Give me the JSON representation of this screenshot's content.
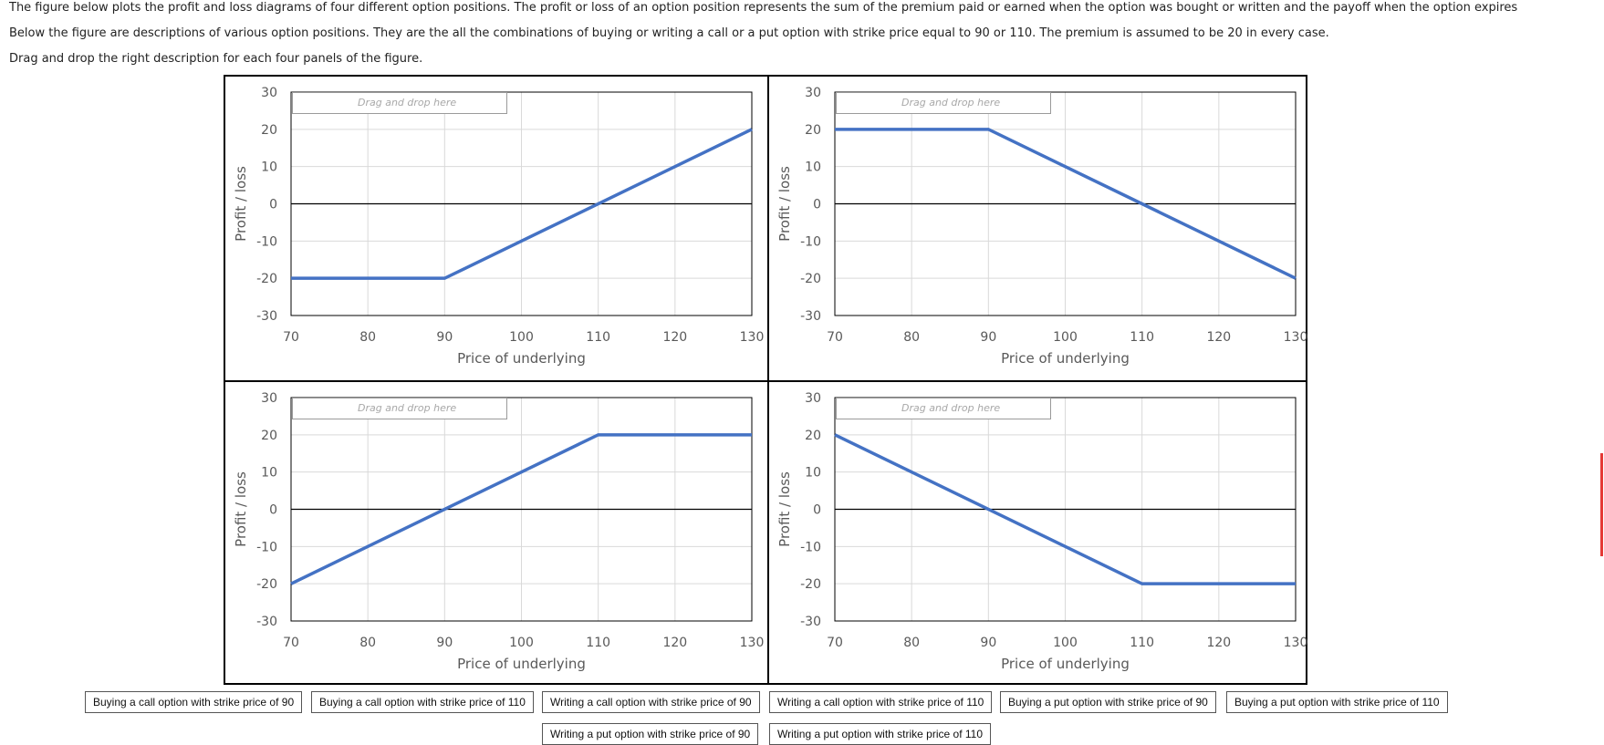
{
  "instructions": {
    "line1": "The figure below plots the profit and loss diagrams of four different option positions. The profit or loss of an option position represents the sum of the premium paid or earned when the option was bought or written and the payoff when the option expires",
    "line2": "Below the figure are descriptions of various option positions. They are the all the combinations of buying or writing a call or a put option with strike price equal to 90 or 110. The premium is assumed to be 20 in every case.",
    "line3": "Drag and drop the right description for each four panels of the figure."
  },
  "dropzone_placeholder": "Drag and drop here",
  "chart_data": [
    {
      "type": "line",
      "panel": "top-left",
      "x": [
        70,
        90,
        130
      ],
      "y": [
        -20,
        -20,
        20
      ],
      "xlabel": "Price of underlying",
      "ylabel": "Profit / loss",
      "xlim": [
        70,
        130
      ],
      "ylim": [
        -30,
        30
      ],
      "xticks": [
        "70",
        "80",
        "90",
        "100",
        "110",
        "120",
        "130"
      ],
      "yticks": [
        "30",
        "20",
        "10",
        "0",
        "-10",
        "-20",
        "-30"
      ],
      "series_color": "#4472C4"
    },
    {
      "type": "line",
      "panel": "top-right",
      "x": [
        70,
        90,
        130
      ],
      "y": [
        20,
        20,
        -20
      ],
      "xlabel": "Price of underlying",
      "ylabel": "Profit / loss",
      "xlim": [
        70,
        130
      ],
      "ylim": [
        -30,
        30
      ],
      "xticks": [
        "70",
        "80",
        "90",
        "100",
        "110",
        "120",
        "130"
      ],
      "yticks": [
        "30",
        "20",
        "10",
        "0",
        "-10",
        "-20",
        "-30"
      ],
      "series_color": "#4472C4"
    },
    {
      "type": "line",
      "panel": "bottom-left",
      "x": [
        70,
        110,
        130
      ],
      "y": [
        -20,
        20,
        20
      ],
      "xlabel": "Price of underlying",
      "ylabel": "Profit / loss",
      "xlim": [
        70,
        130
      ],
      "ylim": [
        -30,
        30
      ],
      "xticks": [
        "70",
        "80",
        "90",
        "100",
        "110",
        "120",
        "130"
      ],
      "yticks": [
        "30",
        "20",
        "10",
        "0",
        "-10",
        "-20",
        "-30"
      ],
      "series_color": "#4472C4"
    },
    {
      "type": "line",
      "panel": "bottom-right",
      "x": [
        70,
        110,
        130
      ],
      "y": [
        20,
        -20,
        -20
      ],
      "xlabel": "Price of underlying",
      "ylabel": "Profit / loss",
      "xlim": [
        70,
        130
      ],
      "ylim": [
        -30,
        30
      ],
      "xticks": [
        "70",
        "80",
        "90",
        "100",
        "110",
        "120",
        "130"
      ],
      "yticks": [
        "30",
        "20",
        "10",
        "0",
        "-10",
        "-20",
        "-30"
      ],
      "series_color": "#4472C4"
    }
  ],
  "options": [
    "Buying a call option with strike price of 90",
    "Buying a call option with strike price of 110",
    "Writing a call option with strike price of 90",
    "Writing a call option with strike price of 110",
    "Buying a put option with strike price of 90",
    "Buying a put option with strike price of 110",
    "Writing a put option with strike price of 90",
    "Writing a put option with strike price of 110"
  ],
  "colors": {
    "series": "#4472C4",
    "grid": "#d9d9d9",
    "axis": "#000000",
    "scroll_marker": "#e53935"
  }
}
